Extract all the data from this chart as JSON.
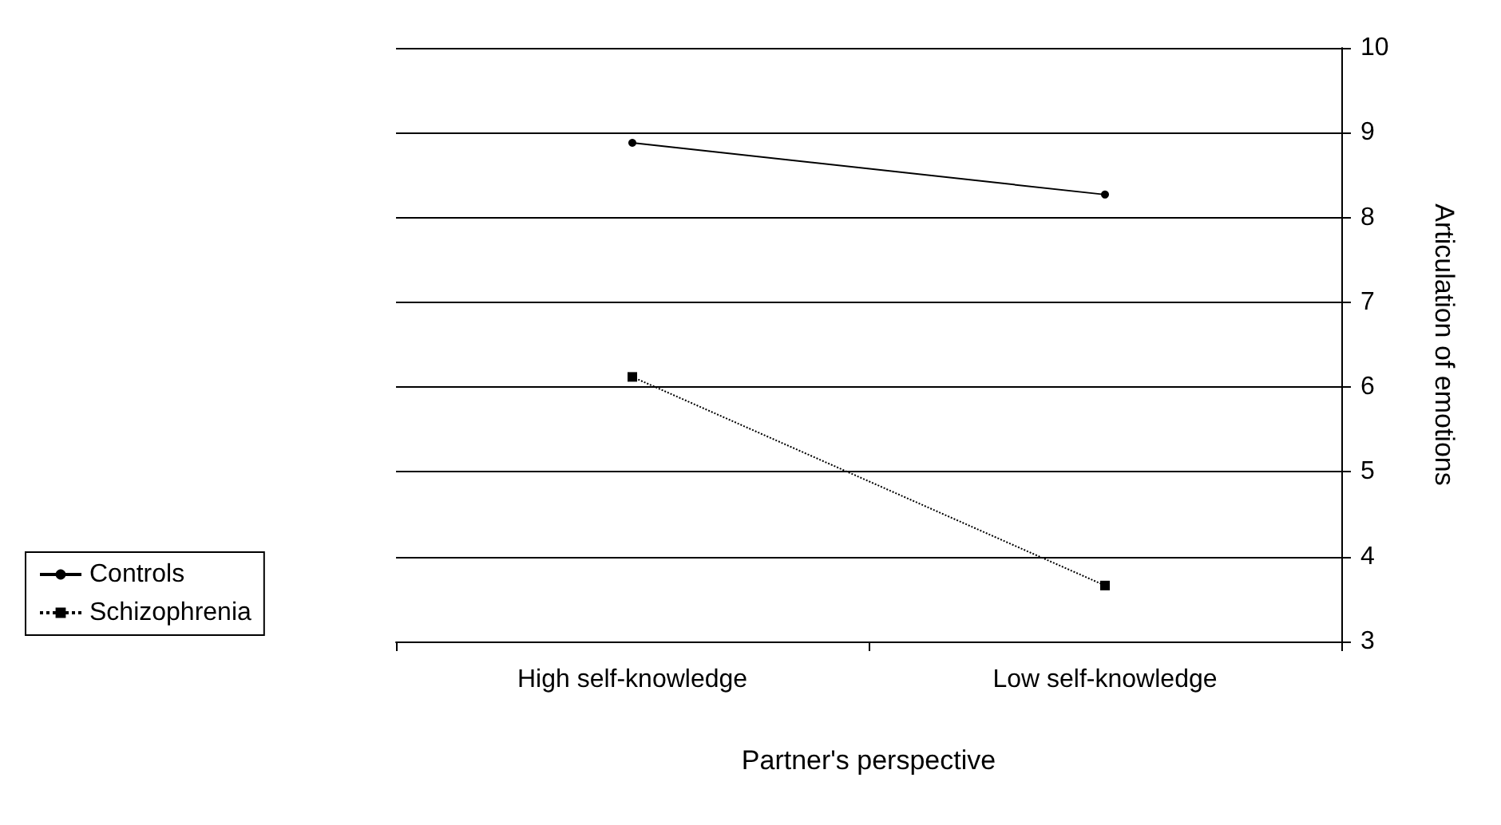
{
  "chart_data": {
    "type": "line",
    "xlabel": "Partner's perspective",
    "ylabel": "Articulation of emotions",
    "categories": [
      "High self-knowledge",
      "Low self-knowledge"
    ],
    "series": [
      {
        "name": "Controls",
        "color": "#000000",
        "values": [
          8.88,
          8.27
        ],
        "marker": "circle",
        "line_style": "solid"
      },
      {
        "name": "Schizophrenia",
        "color": "#000000",
        "values": [
          6.12,
          3.66
        ],
        "marker": "square",
        "line_style": "dotted"
      }
    ],
    "ylim": [
      3,
      10
    ],
    "yticks": [
      3,
      4,
      5,
      6,
      7,
      8,
      9,
      10
    ],
    "grid": "y",
    "legend": "bottom left"
  }
}
